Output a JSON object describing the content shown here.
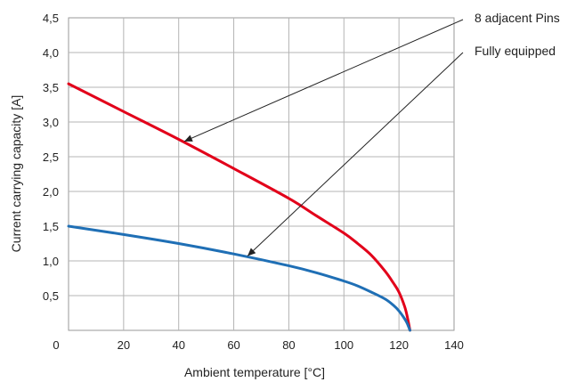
{
  "chart_data": {
    "type": "line",
    "xlabel": "Ambient temperature [°C]",
    "ylabel": "Current carrying capacity [A]",
    "xlim": [
      0,
      140
    ],
    "ylim": [
      0,
      4.5
    ],
    "x_ticks": [
      "0",
      "20",
      "40",
      "60",
      "80",
      "100",
      "120",
      "140"
    ],
    "y_ticks": [
      "0,5",
      "1,0",
      "1,5",
      "2,0",
      "2,5",
      "3,0",
      "3,5",
      "4,0",
      "4,5"
    ],
    "grid": true,
    "series": [
      {
        "name": "8 adjacent Pins",
        "color": "#e2001a",
        "x": [
          0,
          20,
          40,
          60,
          80,
          90,
          100,
          105,
          110,
          115,
          118,
          120,
          122,
          123,
          124
        ],
        "y": [
          3.55,
          3.15,
          2.75,
          2.33,
          1.9,
          1.65,
          1.4,
          1.25,
          1.08,
          0.85,
          0.68,
          0.55,
          0.35,
          0.2,
          0.0
        ]
      },
      {
        "name": "Fully equipped",
        "color": "#1f6fb5",
        "x": [
          0,
          20,
          40,
          60,
          80,
          90,
          100,
          105,
          110,
          115,
          118,
          120,
          122,
          123,
          124
        ],
        "y": [
          1.5,
          1.38,
          1.25,
          1.1,
          0.93,
          0.83,
          0.71,
          0.64,
          0.55,
          0.45,
          0.36,
          0.28,
          0.17,
          0.1,
          0.0
        ]
      }
    ],
    "annotations": [
      {
        "text": "8 adjacent Pins",
        "series": 0,
        "point_x": 42,
        "point_y": 2.72
      },
      {
        "text": "Fully equipped",
        "series": 1,
        "point_x": 65,
        "point_y": 1.07
      }
    ]
  }
}
